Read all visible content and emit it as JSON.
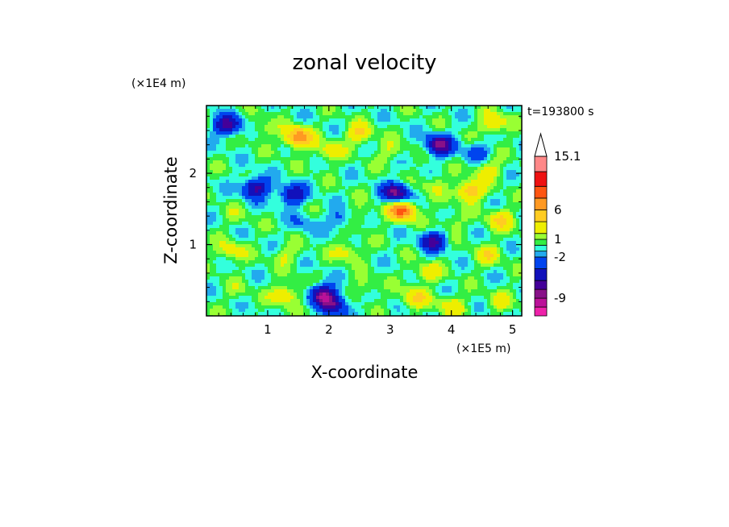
{
  "chart_data": {
    "type": "heatmap",
    "title": "zonal velocity",
    "xlabel": "X-coordinate",
    "ylabel": "Z-coordinate",
    "x_scale_label": "(×1E5 m)",
    "y_scale_label": "(×1E4 m)",
    "time_label": "t=193800 s",
    "xlim": [
      0,
      5.15
    ],
    "ylim": [
      0,
      2.95
    ],
    "x_ticks": [
      "1",
      "2",
      "3",
      "4",
      "5"
    ],
    "y_ticks": [
      "1",
      "2"
    ],
    "colorbar": {
      "levels": [
        -12,
        -10.5,
        -9,
        -7.5,
        -6,
        -4,
        -2,
        -1,
        0,
        1,
        2,
        4,
        6,
        8,
        10,
        12.5,
        15.1
      ],
      "labels": [
        "15.1",
        "6",
        "1",
        "-2",
        "-9"
      ],
      "colors": [
        "#ee22aa",
        "#bb1199",
        "#881188",
        "#440099",
        "#1111bb",
        "#0044ee",
        "#22aaee",
        "#33ffdd",
        "#33ee44",
        "#99ff33",
        "#eeee00",
        "#ffcc22",
        "#ff9922",
        "#ff5511",
        "#ee1111",
        "#ff8888",
        "#ffbbbb"
      ],
      "top_color": "#ffffff"
    },
    "features": [
      {
        "x": 0.35,
        "z": 2.67,
        "v": -7
      },
      {
        "x": 0.9,
        "z": 2.62,
        "v": 2
      },
      {
        "x": 1.5,
        "z": 2.5,
        "v": 8
      },
      {
        "x": 2.0,
        "z": 2.3,
        "v": 3
      },
      {
        "x": 2.5,
        "z": 2.55,
        "v": 4
      },
      {
        "x": 3.0,
        "z": 2.3,
        "v": 2
      },
      {
        "x": 3.8,
        "z": 2.4,
        "v": -8
      },
      {
        "x": 4.4,
        "z": 2.3,
        "v": -3
      },
      {
        "x": 4.7,
        "z": 2.7,
        "v": 4
      },
      {
        "x": 4.6,
        "z": 2.05,
        "v": 3
      },
      {
        "x": 0.8,
        "z": 1.8,
        "v": -7
      },
      {
        "x": 1.4,
        "z": 1.7,
        "v": -6
      },
      {
        "x": 0.5,
        "z": 1.4,
        "v": 1
      },
      {
        "x": 1.6,
        "z": 1.3,
        "v": -2
      },
      {
        "x": 2.2,
        "z": 1.35,
        "v": -3
      },
      {
        "x": 2.5,
        "z": 1.4,
        "v": 2
      },
      {
        "x": 3.1,
        "z": 1.72,
        "v": -8
      },
      {
        "x": 3.2,
        "z": 1.48,
        "v": 9
      },
      {
        "x": 3.7,
        "z": 1.85,
        "v": 2
      },
      {
        "x": 4.3,
        "z": 1.75,
        "v": 6
      },
      {
        "x": 3.7,
        "z": 1.05,
        "v": -6
      },
      {
        "x": 4.0,
        "z": 1.3,
        "v": 2
      },
      {
        "x": 4.8,
        "z": 1.35,
        "v": 4
      },
      {
        "x": 0.4,
        "z": 0.9,
        "v": 3
      },
      {
        "x": 1.3,
        "z": 0.85,
        "v": 2
      },
      {
        "x": 2.3,
        "z": 0.9,
        "v": 3
      },
      {
        "x": 3.6,
        "z": 0.6,
        "v": 3
      },
      {
        "x": 4.6,
        "z": 0.85,
        "v": 3
      },
      {
        "x": 0.5,
        "z": 0.35,
        "v": 1
      },
      {
        "x": 1.3,
        "z": 0.3,
        "v": 4
      },
      {
        "x": 1.9,
        "z": 0.3,
        "v": -8
      },
      {
        "x": 2.1,
        "z": 0.15,
        "v": -6
      },
      {
        "x": 2.6,
        "z": 0.4,
        "v": 2
      },
      {
        "x": 3.4,
        "z": 0.25,
        "v": 4
      },
      {
        "x": 4.0,
        "z": 0.15,
        "v": 3
      },
      {
        "x": 4.8,
        "z": 0.2,
        "v": 2
      }
    ]
  }
}
